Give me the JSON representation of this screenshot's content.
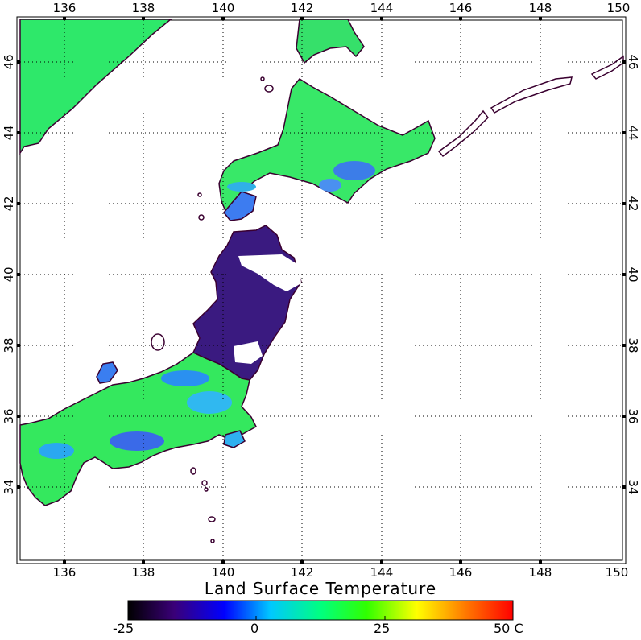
{
  "map": {
    "lon_ticks": [
      "136",
      "138",
      "140",
      "142",
      "144",
      "146",
      "148",
      "150"
    ],
    "lat_ticks": [
      "34",
      "36",
      "38",
      "40",
      "42",
      "44",
      "46"
    ],
    "lon_range": [
      134.8,
      150.0
    ],
    "lat_range": [
      32.0,
      47.1
    ],
    "ocean_color": "#ffffff",
    "coast_color": "#3a0030",
    "grid": "dotted"
  },
  "colorbar": {
    "title": "Land Surface Temperature",
    "labels": [
      "-25",
      "0",
      "25",
      "50 C"
    ],
    "range": [
      -25,
      50
    ],
    "colors": [
      "#000000",
      "#3a0078",
      "#0000ff",
      "#00c8ff",
      "#00ff80",
      "#30ff00",
      "#ffff00",
      "#ff8000",
      "#ff0000"
    ]
  }
}
